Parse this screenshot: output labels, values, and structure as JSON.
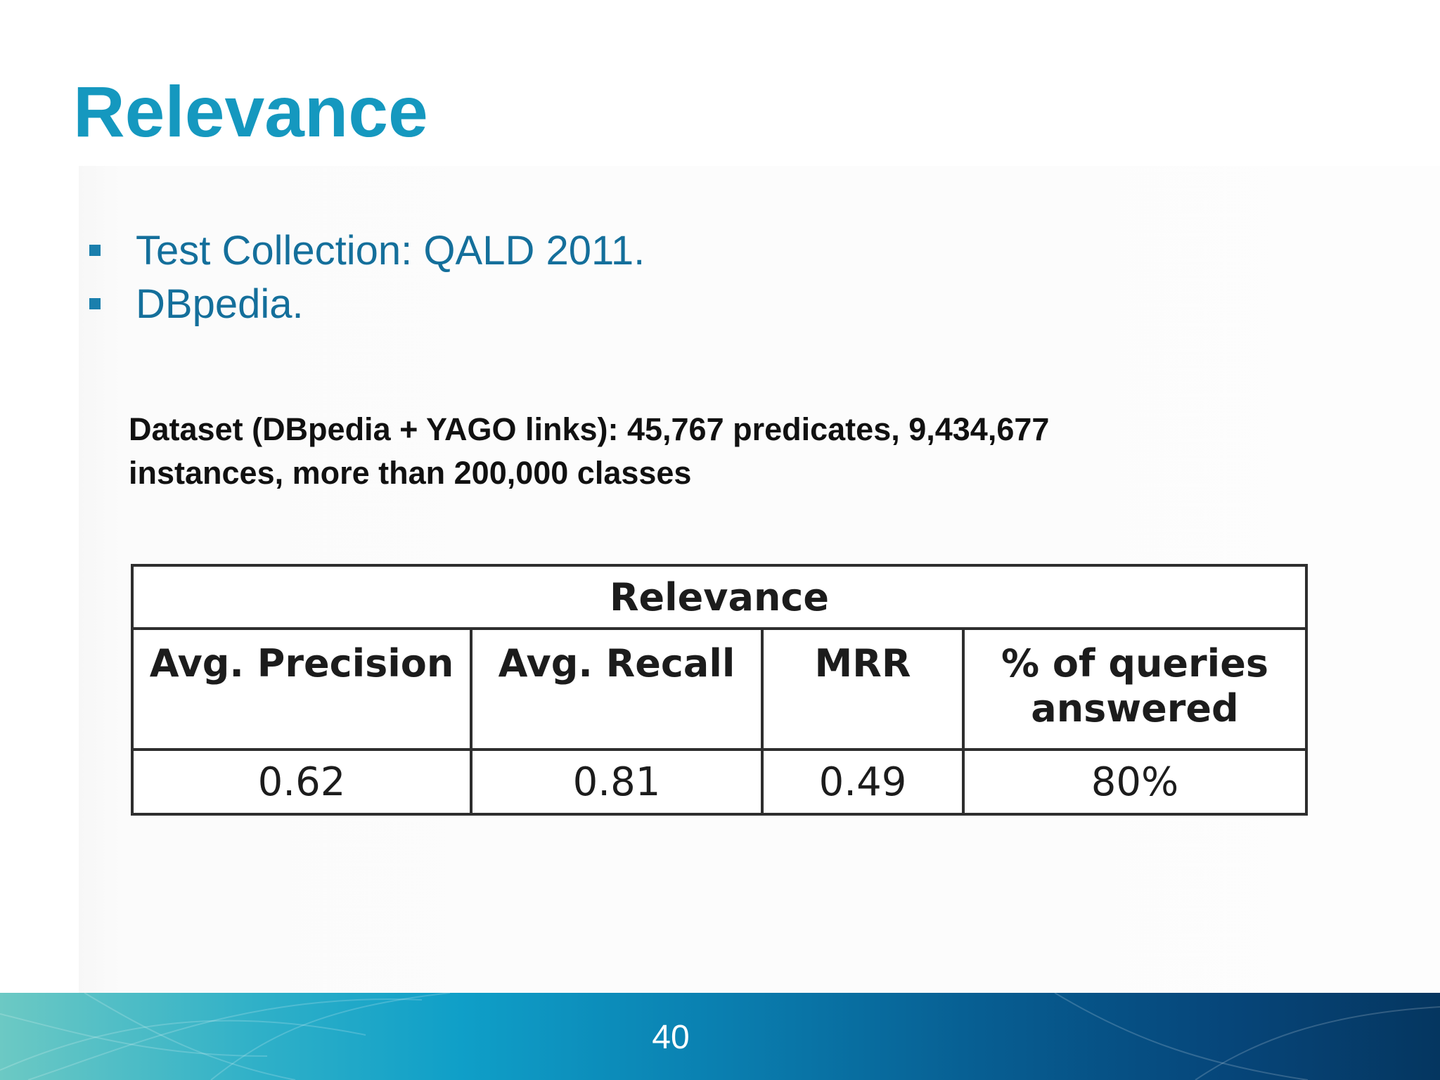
{
  "slide": {
    "title": "Relevance",
    "bullets": [
      "Test Collection: QALD 2011.",
      "DBpedia."
    ],
    "dataset_lines": [
      "Dataset (DBpedia + YAGO links): 45,767 predicates,  9,434,677",
      "instances, more than 200,000 classes"
    ],
    "table": {
      "caption": "Relevance",
      "headers": [
        [
          "Avg. Precision"
        ],
        [
          "Avg. Recall"
        ],
        [
          "MRR"
        ],
        [
          "% of queries",
          "answered"
        ]
      ],
      "values": [
        "0.62",
        "0.81",
        "0.49",
        "80%"
      ]
    },
    "page_number": "40"
  }
}
